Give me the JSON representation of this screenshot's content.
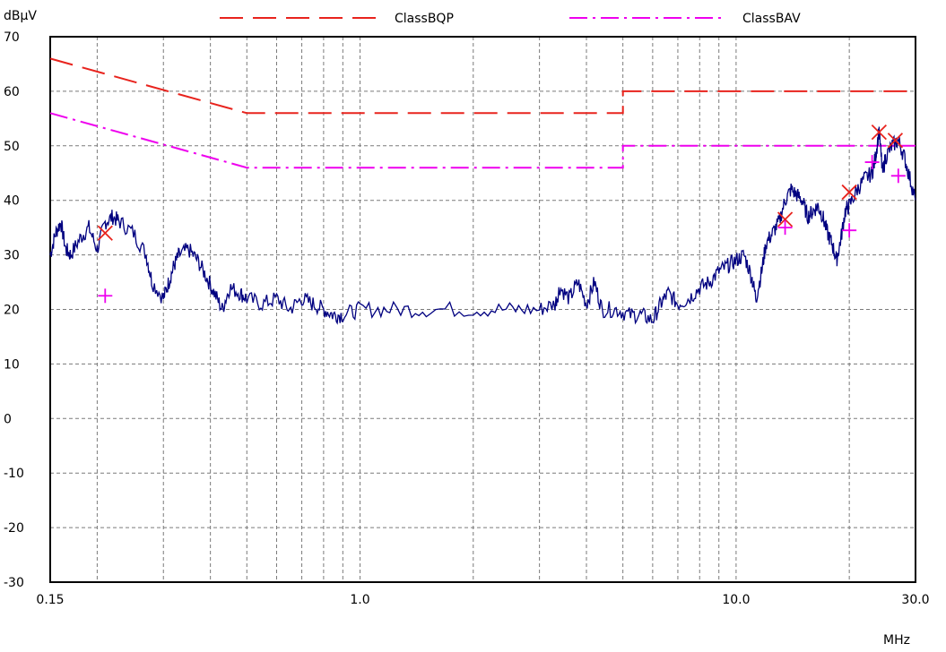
{
  "chart_data": {
    "type": "line",
    "title": "",
    "xlabel": "MHz",
    "ylabel": "dBµV",
    "x_scale": "log",
    "xlim": [
      0.15,
      30.0
    ],
    "ylim": [
      -30,
      70
    ],
    "grid": true,
    "legend_placement": "top",
    "x_tick_labels": [
      {
        "value": 0.15,
        "label": "0.15"
      },
      {
        "value": 1.0,
        "label": "1.0"
      },
      {
        "value": 10.0,
        "label": "10.0"
      },
      {
        "value": 30.0,
        "label": "30.0"
      }
    ],
    "y_ticks": [
      -30,
      -20,
      -10,
      0,
      10,
      20,
      30,
      40,
      50,
      60,
      70
    ],
    "limit_lines": [
      {
        "name": "ClassBQP",
        "color": "#e8231d",
        "dash": "dashed",
        "points": [
          [
            0.15,
            66
          ],
          [
            0.5,
            56
          ],
          [
            5.0,
            56
          ],
          [
            5.0,
            60
          ],
          [
            30.0,
            60
          ]
        ]
      },
      {
        "name": "ClassBAV",
        "color": "#ee00ee",
        "dash": "dashdot",
        "points": [
          [
            0.15,
            56
          ],
          [
            0.5,
            46
          ],
          [
            5.0,
            46
          ],
          [
            5.0,
            50
          ],
          [
            30.0,
            50
          ]
        ]
      }
    ],
    "series": [
      {
        "color": "#000080",
        "points": [
          [
            0.15,
            30
          ],
          [
            0.155,
            34
          ],
          [
            0.16,
            36
          ],
          [
            0.165,
            31
          ],
          [
            0.17,
            30
          ],
          [
            0.18,
            33
          ],
          [
            0.19,
            35
          ],
          [
            0.2,
            31
          ],
          [
            0.21,
            36
          ],
          [
            0.22,
            37
          ],
          [
            0.23,
            36
          ],
          [
            0.25,
            34
          ],
          [
            0.27,
            30
          ],
          [
            0.28,
            25
          ],
          [
            0.3,
            22
          ],
          [
            0.31,
            25
          ],
          [
            0.32,
            28
          ],
          [
            0.33,
            30
          ],
          [
            0.35,
            31
          ],
          [
            0.37,
            29
          ],
          [
            0.39,
            26
          ],
          [
            0.41,
            23
          ],
          [
            0.43,
            20
          ],
          [
            0.45,
            24
          ],
          [
            0.48,
            23
          ],
          [
            0.5,
            22
          ],
          [
            0.55,
            21
          ],
          [
            0.6,
            22
          ],
          [
            0.65,
            20
          ],
          [
            0.7,
            22
          ],
          [
            0.75,
            21
          ],
          [
            0.8,
            20
          ],
          [
            0.85,
            19
          ],
          [
            0.9,
            19
          ],
          [
            1.0,
            20
          ],
          [
            1.2,
            20
          ],
          [
            1.5,
            20
          ],
          [
            2.0,
            20
          ],
          [
            2.5,
            20
          ],
          [
            3.0,
            20
          ],
          [
            3.3,
            21
          ],
          [
            3.4,
            24
          ],
          [
            3.6,
            22
          ],
          [
            3.8,
            25
          ],
          [
            4.0,
            21
          ],
          [
            4.2,
            25
          ],
          [
            4.4,
            20
          ],
          [
            4.8,
            20
          ],
          [
            5.2,
            19
          ],
          [
            5.6,
            19
          ],
          [
            6.0,
            18
          ],
          [
            6.3,
            21
          ],
          [
            6.6,
            23
          ],
          [
            7.0,
            21
          ],
          [
            7.5,
            22
          ],
          [
            8.0,
            24
          ],
          [
            8.5,
            25
          ],
          [
            9.0,
            27
          ],
          [
            9.5,
            28
          ],
          [
            10.0,
            29
          ],
          [
            10.5,
            30
          ],
          [
            11.0,
            26
          ],
          [
            11.3,
            22
          ],
          [
            11.7,
            27
          ],
          [
            12.0,
            32
          ],
          [
            12.5,
            34
          ],
          [
            13.0,
            36
          ],
          [
            13.5,
            40
          ],
          [
            14.0,
            42
          ],
          [
            14.5,
            41
          ],
          [
            15.0,
            40
          ],
          [
            15.5,
            37
          ],
          [
            16.0,
            38
          ],
          [
            16.5,
            39
          ],
          [
            17.0,
            37
          ],
          [
            17.5,
            34
          ],
          [
            18.0,
            32
          ],
          [
            18.5,
            29
          ],
          [
            19.0,
            33
          ],
          [
            19.5,
            38
          ],
          [
            20.0,
            39
          ],
          [
            21.0,
            42
          ],
          [
            22.0,
            44
          ],
          [
            23.0,
            45
          ],
          [
            23.5,
            48
          ],
          [
            24.0,
            53
          ],
          [
            24.5,
            45
          ],
          [
            25.0,
            48
          ],
          [
            26.0,
            50
          ],
          [
            27.0,
            51
          ],
          [
            28.0,
            48
          ],
          [
            29.0,
            44
          ],
          [
            30.0,
            40
          ]
        ]
      }
    ],
    "qp_markers": [
      {
        "x": 0.21,
        "y": 34
      },
      {
        "x": 13.5,
        "y": 36.5
      },
      {
        "x": 20.0,
        "y": 41.5
      },
      {
        "x": 24.0,
        "y": 52.5
      },
      {
        "x": 26.5,
        "y": 51
      }
    ],
    "av_markers": [
      {
        "x": 0.21,
        "y": 22.5
      },
      {
        "x": 13.5,
        "y": 35
      },
      {
        "x": 20.0,
        "y": 34.5
      },
      {
        "x": 23.0,
        "y": 47
      },
      {
        "x": 27.0,
        "y": 44.5
      }
    ]
  }
}
